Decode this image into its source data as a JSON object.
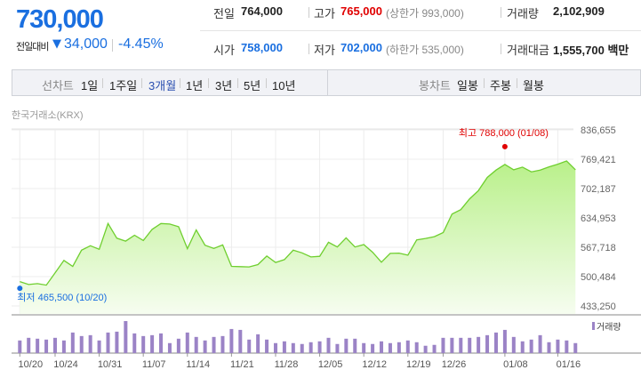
{
  "quote": {
    "price": "730,000",
    "change_label": "전일대비",
    "change_arrow": "▼",
    "change_amount": "34,000",
    "change_pct": "-4.45%"
  },
  "stats": {
    "prev_close_label": "전일",
    "prev_close": "764,000",
    "high_label": "고가",
    "high": "765,000",
    "upper_limit": "(상한가 993,000)",
    "volume_label": "거래량",
    "volume": "2,102,909",
    "open_label": "시가",
    "open": "758,000",
    "low_label": "저가",
    "low": "702,000",
    "lower_limit": "(하한가 535,000)",
    "amount_label": "거래대금",
    "amount": "1,555,700 백만"
  },
  "toolbar": {
    "line_chart_label": "선차트",
    "periods": [
      "1일",
      "1주일",
      "3개월",
      "1년",
      "3년",
      "5년",
      "10년"
    ],
    "active_period": "3개월",
    "candle_chart_label": "봉차트",
    "candles": [
      "일봉",
      "주봉",
      "월봉"
    ]
  },
  "exchange": "한국거래소(KRX)",
  "colors": {
    "up": "#e00000",
    "down": "#1a6fe0",
    "line": "#6fcf2f",
    "volume": "#9b83c6"
  },
  "chart_data": {
    "type": "area",
    "yticks": [
      "836,655",
      "769,421",
      "702,187",
      "634,953",
      "567,718",
      "500,484",
      "433,250"
    ],
    "ylim": [
      433250,
      836655
    ],
    "grid": true,
    "xtick_labels": [
      {
        "i": 0,
        "label": "10/20"
      },
      {
        "i": 4,
        "label": "10/24"
      },
      {
        "i": 9,
        "label": "10/31"
      },
      {
        "i": 14,
        "label": "11/07"
      },
      {
        "i": 19,
        "label": "11/14"
      },
      {
        "i": 24,
        "label": "11/21"
      },
      {
        "i": 29,
        "label": "11/28"
      },
      {
        "i": 34,
        "label": "12/05"
      },
      {
        "i": 39,
        "label": "12/12"
      },
      {
        "i": 44,
        "label": "12/19"
      },
      {
        "i": 48,
        "label": "12/26"
      },
      {
        "i": 55,
        "label": "01/08"
      },
      {
        "i": 61,
        "label": "01/16"
      }
    ],
    "price": [
      489000,
      482350,
      484370,
      481000,
      509250,
      537500,
      524000,
      561000,
      571100,
      563000,
      622200,
      588600,
      581850,
      595300,
      583200,
      608750,
      622200,
      620850,
      614800,
      564400,
      607400,
      572450,
      565050,
      573100,
      524000,
      523350,
      522700,
      528050,
      547550,
      532800,
      539500,
      561000,
      554950,
      545550,
      546900,
      579150,
      568400,
      589250,
      568400,
      573800,
      556300,
      533450,
      553600,
      554300,
      549600,
      584550,
      587900,
      591950,
      601350,
      643700,
      653800,
      678650,
      697500,
      727750,
      744550,
      757300,
      745200,
      751250,
      740500,
      744550,
      751950,
      758000,
      765400,
      745200
    ],
    "high_marker": {
      "label": "최고",
      "value": 788000,
      "text": "788,000 (01/08)",
      "i": 55
    },
    "low_marker": {
      "label": "최저",
      "value": 465500,
      "text": "465,500 (10/20)",
      "i": 0
    },
    "volume_legend": "거래량",
    "volume_relative": [
      43,
      52,
      49,
      46,
      52,
      43,
      70,
      58,
      61,
      43,
      70,
      73,
      109,
      67,
      58,
      61,
      67,
      34,
      49,
      70,
      55,
      43,
      55,
      58,
      82,
      79,
      46,
      64,
      46,
      34,
      40,
      34,
      31,
      37,
      40,
      52,
      31,
      49,
      49,
      34,
      31,
      40,
      34,
      37,
      43,
      37,
      25,
      28,
      52,
      52,
      52,
      52,
      55,
      61,
      70,
      79,
      55,
      40,
      46,
      61,
      37,
      46,
      43,
      34
    ]
  }
}
